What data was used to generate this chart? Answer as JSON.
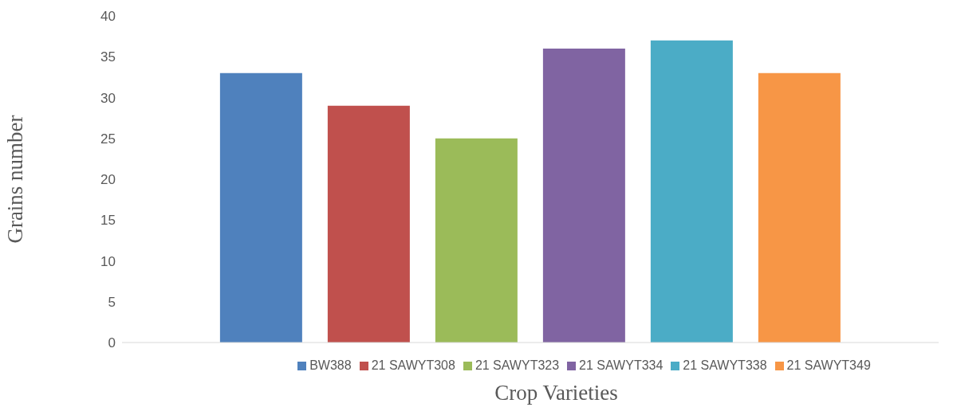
{
  "chart_data": {
    "type": "bar",
    "xlabel": "Crop Varieties",
    "ylabel": "Grains number",
    "categories": [
      null
    ],
    "series": [
      {
        "name": "BW388",
        "color": "#4f81bd",
        "values": [
          33
        ]
      },
      {
        "name": "21 SAWYT308",
        "color": "#c0504d",
        "values": [
          29
        ]
      },
      {
        "name": "21 SAWYT323",
        "color": "#9bbb59",
        "values": [
          25
        ]
      },
      {
        "name": "21 SAWYT334",
        "color": "#8064a2",
        "values": [
          36
        ]
      },
      {
        "name": "21 SAWYT338",
        "color": "#4bacc6",
        "values": [
          37
        ]
      },
      {
        "name": "21 SAWYT349",
        "color": "#f79646",
        "values": [
          33
        ]
      }
    ],
    "ylim": [
      0,
      40
    ],
    "yticks": [
      0,
      5,
      10,
      15,
      20,
      25,
      30,
      35,
      40
    ],
    "grid": false,
    "legend": "bottom"
  }
}
